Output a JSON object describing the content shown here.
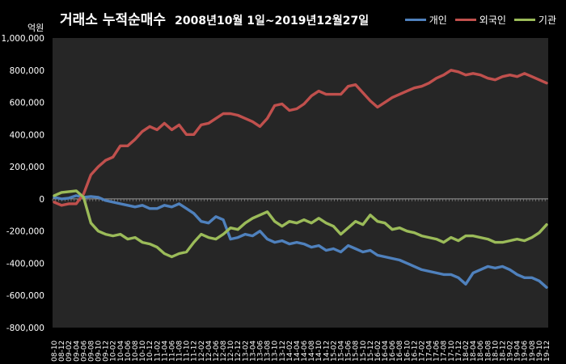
{
  "chart_data": {
    "type": "line",
    "title": "거래소 누적순매수",
    "subtitle": "2008년10월 1일~2019년12월27일",
    "unit_label": "억원",
    "ylim": [
      -800000,
      1000000
    ],
    "y_ticks": [
      1000000,
      800000,
      600000,
      400000,
      200000,
      0,
      -200000,
      -400000,
      -600000,
      -800000
    ],
    "y_tick_labels": [
      "1,000,000",
      "800,000",
      "600,000",
      "400,000",
      "200,000",
      "0",
      "-200,000",
      "-400,000",
      "-600,000",
      "-800,000"
    ],
    "categories": [
      "08-10",
      "08-12",
      "09-02",
      "09-04",
      "09-06",
      "09-08",
      "09-10",
      "09-12",
      "10-02",
      "10-04",
      "10-06",
      "10-08",
      "10-10",
      "10-12",
      "11-02",
      "11-04",
      "11-06",
      "11-08",
      "11-10",
      "11-12",
      "12-02",
      "12-04",
      "12-06",
      "12-08",
      "12-10",
      "12-12",
      "13-02",
      "13-04",
      "13-06",
      "13-08",
      "13-10",
      "13-12",
      "14-02",
      "14-04",
      "14-06",
      "14-08",
      "14-10",
      "14-12",
      "15-02",
      "15-04",
      "15-06",
      "15-08",
      "15-10",
      "15-12",
      "16-02",
      "16-04",
      "16-06",
      "16-08",
      "16-10",
      "16-12",
      "17-02",
      "17-04",
      "17-06",
      "17-08",
      "17-10",
      "17-12",
      "18-02",
      "18-04",
      "18-06",
      "18-08",
      "18-10",
      "18-12",
      "19-02",
      "19-04",
      "19-06",
      "19-08",
      "19-10",
      "19-12"
    ],
    "legend_position": "top-right",
    "grid": false,
    "series": [
      {
        "name": "개인",
        "color": "#4f81bd",
        "values": [
          10000,
          0,
          5000,
          20000,
          10000,
          15000,
          10000,
          -10000,
          -20000,
          -30000,
          -40000,
          -50000,
          -40000,
          -60000,
          -60000,
          -40000,
          -50000,
          -30000,
          -60000,
          -90000,
          -140000,
          -150000,
          -110000,
          -130000,
          -250000,
          -240000,
          -220000,
          -230000,
          -200000,
          -250000,
          -270000,
          -260000,
          -280000,
          -270000,
          -280000,
          -300000,
          -290000,
          -320000,
          -310000,
          -330000,
          -290000,
          -310000,
          -330000,
          -320000,
          -350000,
          -360000,
          -370000,
          -380000,
          -400000,
          -420000,
          -440000,
          -450000,
          -460000,
          -470000,
          -470000,
          -490000,
          -530000,
          -460000,
          -440000,
          -420000,
          -430000,
          -420000,
          -440000,
          -470000,
          -490000,
          -490000,
          -510000,
          -550000
        ]
      },
      {
        "name": "외국인",
        "color": "#c0504d",
        "values": [
          -20000,
          -40000,
          -30000,
          -30000,
          30000,
          150000,
          200000,
          240000,
          260000,
          330000,
          330000,
          370000,
          420000,
          450000,
          430000,
          470000,
          430000,
          460000,
          400000,
          400000,
          460000,
          470000,
          500000,
          530000,
          530000,
          520000,
          500000,
          480000,
          450000,
          500000,
          580000,
          590000,
          550000,
          560000,
          590000,
          640000,
          670000,
          650000,
          650000,
          650000,
          700000,
          710000,
          660000,
          610000,
          570000,
          600000,
          630000,
          650000,
          670000,
          690000,
          700000,
          720000,
          750000,
          770000,
          800000,
          790000,
          770000,
          780000,
          770000,
          750000,
          740000,
          760000,
          770000,
          760000,
          780000,
          760000,
          740000,
          720000
        ]
      },
      {
        "name": "기관",
        "color": "#9bbb59",
        "values": [
          20000,
          40000,
          45000,
          50000,
          10000,
          -150000,
          -200000,
          -220000,
          -230000,
          -220000,
          -250000,
          -240000,
          -270000,
          -280000,
          -300000,
          -340000,
          -360000,
          -340000,
          -330000,
          -270000,
          -220000,
          -240000,
          -250000,
          -220000,
          -180000,
          -190000,
          -150000,
          -120000,
          -100000,
          -80000,
          -140000,
          -170000,
          -140000,
          -150000,
          -130000,
          -150000,
          -120000,
          -150000,
          -170000,
          -220000,
          -180000,
          -140000,
          -160000,
          -100000,
          -140000,
          -150000,
          -190000,
          -180000,
          -200000,
          -210000,
          -230000,
          -240000,
          -250000,
          -270000,
          -240000,
          -260000,
          -230000,
          -230000,
          -240000,
          -250000,
          -270000,
          -270000,
          -260000,
          -250000,
          -260000,
          -240000,
          -210000,
          -160000
        ]
      }
    ]
  }
}
